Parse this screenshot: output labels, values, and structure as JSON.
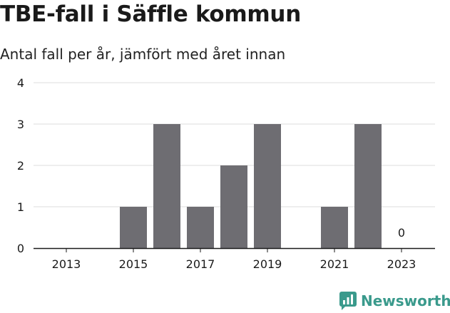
{
  "header": {
    "title": "TBE-fall i Säffle kommun",
    "subtitle": "Antal fall per år, jämfört med året innan"
  },
  "brand": {
    "name": "Newsworthy",
    "color": "#3a9a8c"
  },
  "colors": {
    "bar": "#6e6d72",
    "grid": "#dddddd",
    "axis": "#1a1a1a"
  },
  "chart_data": {
    "type": "bar",
    "categories": [
      "2013",
      "2014",
      "2015",
      "2016",
      "2017",
      "2018",
      "2019",
      "2020",
      "2021",
      "2022",
      "2023"
    ],
    "values": [
      0,
      0,
      1,
      3,
      1,
      2,
      3,
      0,
      1,
      3,
      0
    ],
    "x_tick_labels": [
      "2013",
      "2015",
      "2017",
      "2019",
      "2021",
      "2023"
    ],
    "y_ticks": [
      0,
      1,
      2,
      3,
      4
    ],
    "ylim": [
      0,
      4
    ],
    "data_labels": [
      {
        "category": "2023",
        "text": "0"
      }
    ],
    "grid": true
  }
}
